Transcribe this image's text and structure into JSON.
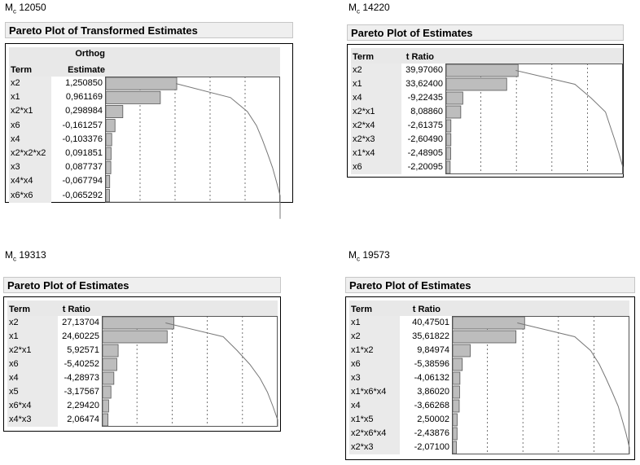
{
  "chart_data": [
    {
      "type": "bar",
      "model_label": "Mc 12050",
      "model_prefix": "M",
      "model_sub": "c",
      "model_num": "12050",
      "title": "Pareto Plot of Transformed Estimates",
      "col_term": "Term",
      "col_value_line1": "Orthog",
      "col_value_line2": "Estimate",
      "categories": [
        "x2",
        "x1",
        "x2*x1",
        "x6",
        "x4",
        "x2*x2*x2",
        "x3",
        "x4*x4",
        "x6*x6"
      ],
      "labels": [
        "1,250850",
        "0,961169",
        "0,298984",
        "-0,161257",
        "-0,103376",
        "0,091851",
        "0,087737",
        "-0,067794",
        "-0,065292"
      ],
      "values": [
        1.25085,
        0.961169,
        0.298984,
        -0.161257,
        -0.103376,
        0.091851,
        0.087737,
        -0.067794,
        -0.065292
      ],
      "bar_color": "#bdbdbd"
    },
    {
      "type": "bar",
      "model_label": "Mc 14220",
      "model_prefix": "M",
      "model_sub": "c",
      "model_num": "14220",
      "title": "Pareto Plot of Estimates",
      "col_term": "Term",
      "col_value_line1": "",
      "col_value_line2": "t Ratio",
      "categories": [
        "x2",
        "x1",
        "x4",
        "x2*x1",
        "x2*x4",
        "x2*x3",
        "x1*x4",
        "x6"
      ],
      "labels": [
        "39,97060",
        "33,62400",
        "-9,22435",
        "8,08860",
        "-2,61375",
        "-2,60490",
        "-2,48905",
        "-2,20095"
      ],
      "values": [
        39.9706,
        33.624,
        -9.22435,
        8.0886,
        -2.61375,
        -2.6049,
        -2.48905,
        -2.20095
      ],
      "bar_color": "#bdbdbd"
    },
    {
      "type": "bar",
      "model_label": "Mc 19313",
      "model_prefix": "M",
      "model_sub": "c",
      "model_num": "19313",
      "title": "Pareto Plot of Estimates",
      "col_term": "Term",
      "col_value_line1": "",
      "col_value_line2": "t Ratio",
      "categories": [
        "x2",
        "x1",
        "x2*x1",
        "x6",
        "x4",
        "x5",
        "x6*x4",
        "x4*x3"
      ],
      "labels": [
        "27,13704",
        "24,60225",
        "5,92571",
        "-5,40252",
        "-4,28973",
        "-3,17567",
        "2,29420",
        "2,06474"
      ],
      "values": [
        27.13704,
        24.60225,
        5.92571,
        -5.40252,
        -4.28973,
        -3.17567,
        2.2942,
        2.06474
      ],
      "bar_color": "#bdbdbd"
    },
    {
      "type": "bar",
      "model_label": "Mc 19573",
      "model_prefix": "M",
      "model_sub": "c",
      "model_num": "19573",
      "title": "Pareto Plot of Estimates",
      "col_term": "Term",
      "col_value_line1": "",
      "col_value_line2": "t Ratio",
      "categories": [
        "x1",
        "x2",
        "x1*x2",
        "x6",
        "x3",
        "x1*x6*x4",
        "x4",
        "x1*x5",
        "x2*x6*x4",
        "x2*x3"
      ],
      "labels": [
        "40,47501",
        "35,61822",
        "9,84974",
        "-5,38596",
        "-4,06132",
        "3,86020",
        "-3,66268",
        "2,50002",
        "-2,43876",
        "-2,07100"
      ],
      "values": [
        40.47501,
        35.61822,
        9.84974,
        -5.38596,
        -4.06132,
        3.8602,
        -3.66268,
        2.50002,
        -2.43876,
        -2.071
      ],
      "bar_color": "#bdbdbd"
    }
  ]
}
